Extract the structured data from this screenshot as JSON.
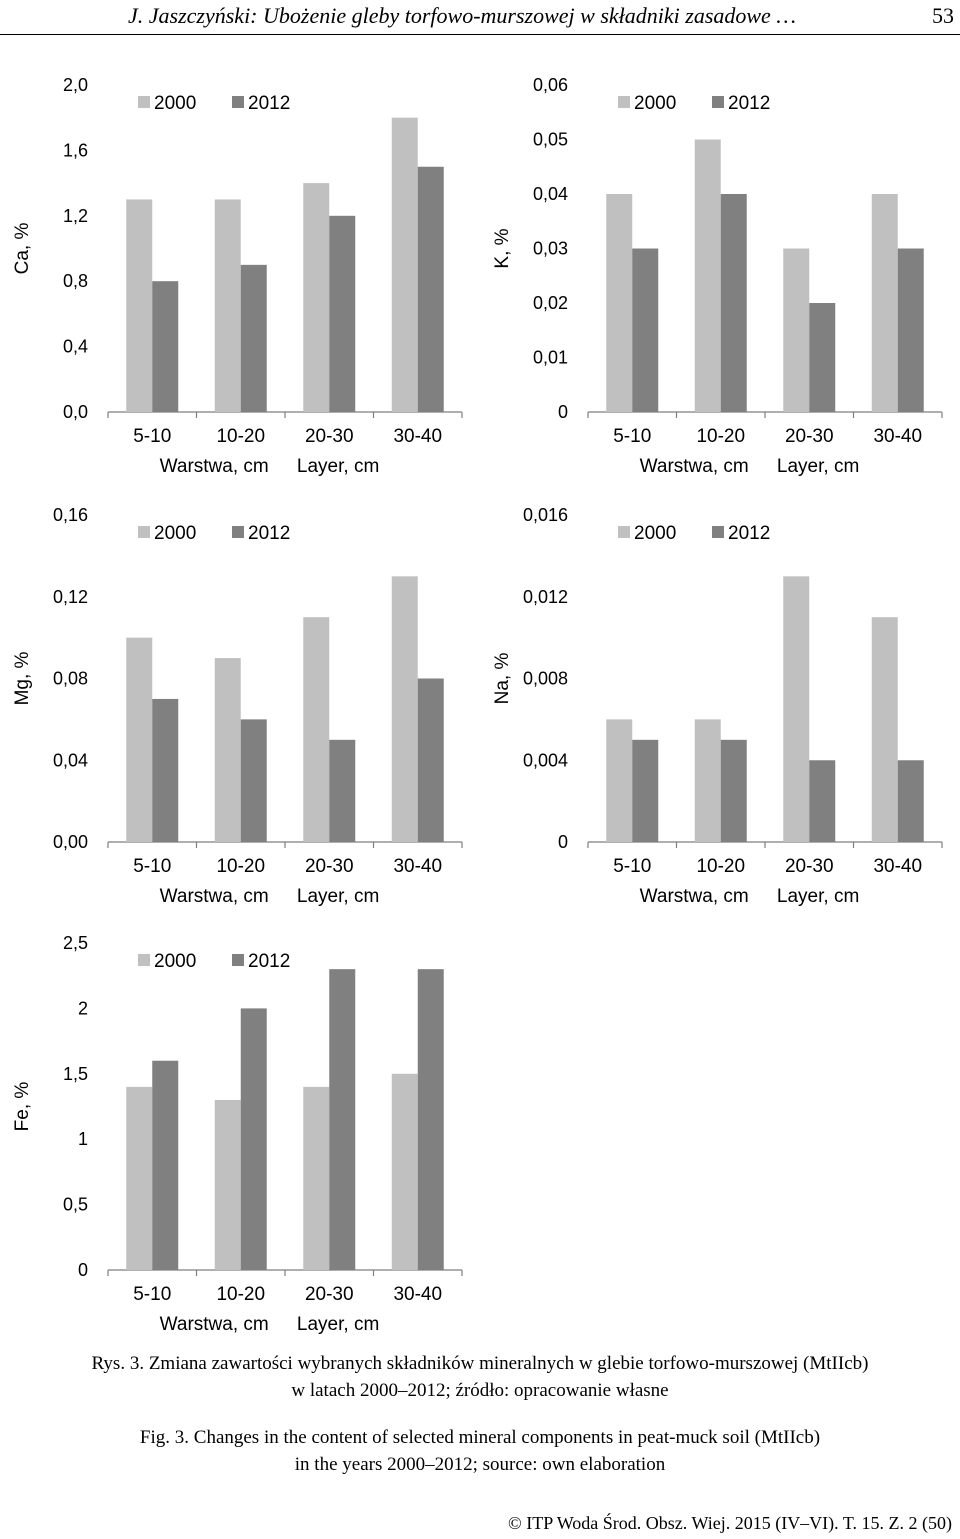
{
  "header": {
    "title": "J. Jaszczyński: Ubożenie gleby torfowo-murszowej w składniki zasadowe …",
    "page": "53"
  },
  "caption": {
    "pl_line1": "Rys. 3. Zmiana zawartości wybranych składników mineralnych w glebie torfowo-murszowej (MtIIcb)",
    "pl_line2": "w latach 2000–2012; źródło: opracowanie własne",
    "en_line1": "Fig. 3. Changes in the content of selected mineral components in peat-muck soil (MtIIcb)",
    "en_line2": "in the years 2000–2012; source: own elaboration"
  },
  "footer": "© ITP Woda Środ. Obsz. Wiej. 2015 (IV–VI). T. 15. Z. 2 (50)",
  "colors": {
    "y2000": "#c0c0c0",
    "y2012": "#808080",
    "axis": "#7f7f7f",
    "text": "#000000"
  },
  "chart_data": [
    {
      "id": "ca",
      "type": "bar",
      "ylabel": "Ca, %",
      "categories": [
        "5-10",
        "10-20",
        "20-30",
        "30-40"
      ],
      "xlabel_left": "Warstwa, cm",
      "xlabel_right": "Layer, cm",
      "yticks": [
        "0,0",
        "0,4",
        "0,8",
        "1,2",
        "1,6",
        "2,0"
      ],
      "ylim": [
        0,
        2.0
      ],
      "legend": [
        "2000",
        "2012"
      ],
      "legend_position": "top-left",
      "series": [
        {
          "name": "2000",
          "values": [
            1.3,
            1.3,
            1.4,
            1.8
          ]
        },
        {
          "name": "2012",
          "values": [
            0.8,
            0.9,
            1.2,
            1.5
          ]
        }
      ]
    },
    {
      "id": "k",
      "type": "bar",
      "ylabel": "K, %",
      "categories": [
        "5-10",
        "10-20",
        "20-30",
        "30-40"
      ],
      "xlabel_left": "Warstwa, cm",
      "xlabel_right": "Layer, cm",
      "yticks": [
        "0",
        "0,01",
        "0,02",
        "0,03",
        "0,04",
        "0,05",
        "0,06"
      ],
      "ylim": [
        0,
        0.06
      ],
      "legend": [
        "2000",
        "2012"
      ],
      "legend_position": "top-left",
      "series": [
        {
          "name": "2000",
          "values": [
            0.04,
            0.05,
            0.03,
            0.04
          ]
        },
        {
          "name": "2012",
          "values": [
            0.03,
            0.04,
            0.02,
            0.03
          ]
        }
      ]
    },
    {
      "id": "mg",
      "type": "bar",
      "ylabel": "Mg, %",
      "categories": [
        "5-10",
        "10-20",
        "20-30",
        "30-40"
      ],
      "xlabel_left": "Warstwa, cm",
      "xlabel_right": "Layer, cm",
      "yticks": [
        "0,00",
        "0,04",
        "0,08",
        "0,12",
        "0,16"
      ],
      "ylim": [
        0,
        0.16
      ],
      "legend": [
        "2000",
        "2012"
      ],
      "legend_position": "top-left",
      "series": [
        {
          "name": "2000",
          "values": [
            0.1,
            0.09,
            0.11,
            0.13
          ]
        },
        {
          "name": "2012",
          "values": [
            0.07,
            0.06,
            0.05,
            0.08
          ]
        }
      ]
    },
    {
      "id": "na",
      "type": "bar",
      "ylabel": "Na, %",
      "categories": [
        "5-10",
        "10-20",
        "20-30",
        "30-40"
      ],
      "xlabel_left": "Warstwa, cm",
      "xlabel_right": "Layer, cm",
      "yticks": [
        "0",
        "0,004",
        "0,008",
        "0,012",
        "0,016"
      ],
      "ylim": [
        0,
        0.016
      ],
      "legend": [
        "2000",
        "2012"
      ],
      "legend_position": "top-left",
      "series": [
        {
          "name": "2000",
          "values": [
            0.006,
            0.006,
            0.013,
            0.011
          ]
        },
        {
          "name": "2012",
          "values": [
            0.005,
            0.005,
            0.004,
            0.004
          ]
        }
      ]
    },
    {
      "id": "fe",
      "type": "bar",
      "ylabel": "Fe, %",
      "categories": [
        "5-10",
        "10-20",
        "20-30",
        "30-40"
      ],
      "xlabel_left": "Warstwa, cm",
      "xlabel_right": "Layer, cm",
      "yticks": [
        "0",
        "0,5",
        "1",
        "1,5",
        "2",
        "2,5"
      ],
      "ylim": [
        0,
        2.5
      ],
      "legend": [
        "2000",
        "2012"
      ],
      "legend_position": "top-left",
      "series": [
        {
          "name": "2000",
          "values": [
            1.4,
            1.3,
            1.4,
            1.5
          ]
        },
        {
          "name": "2012",
          "values": [
            1.6,
            2.0,
            2.3,
            2.3
          ]
        }
      ]
    }
  ]
}
